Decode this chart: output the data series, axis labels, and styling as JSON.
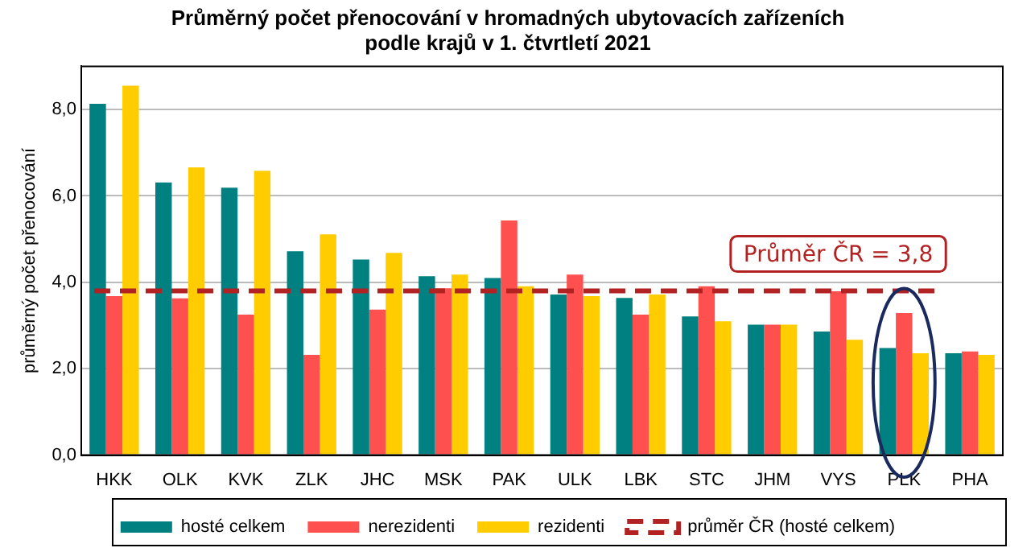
{
  "chart_data": {
    "type": "bar",
    "title": "Průměrný počet přenocování v hromadných ubytovacích zařízeních\npodle krajů v 1. čtvrtletí 2021",
    "ylabel": "průměrný počet přenocování",
    "categories": [
      "HKK",
      "OLK",
      "KVK",
      "ZLK",
      "JHC",
      "MSK",
      "PAK",
      "ULK",
      "LBK",
      "STC",
      "JHM",
      "VYS",
      "PLK",
      "PHA"
    ],
    "series": [
      {
        "name": "hosté celkem",
        "color": "#008080",
        "values": [
          8.13,
          6.31,
          6.19,
          4.72,
          4.53,
          4.14,
          4.1,
          3.72,
          3.64,
          3.21,
          3.02,
          2.86,
          2.48,
          2.36
        ]
      },
      {
        "name": "nerezidenti",
        "color": "#ff5050",
        "values": [
          3.68,
          3.63,
          3.25,
          2.32,
          3.37,
          3.86,
          5.43,
          4.18,
          3.25,
          3.91,
          3.02,
          3.79,
          3.29,
          2.4
        ]
      },
      {
        "name": "rezidenti",
        "color": "#ffcc00",
        "values": [
          8.55,
          6.66,
          6.58,
          5.11,
          4.68,
          4.18,
          3.91,
          3.68,
          3.72,
          3.1,
          3.02,
          2.67,
          2.36,
          2.32
        ]
      }
    ],
    "ref_lines": [
      {
        "axis": "y",
        "value": 3.8,
        "label": "průměr ČR (hosté celkem)",
        "color": "#b22222",
        "line_style": "dashed"
      }
    ],
    "annotations": [
      {
        "text": "Průměr ČR = 3,8",
        "x": "VYS",
        "y": 3.8
      }
    ],
    "ylim": [
      0,
      9
    ],
    "yticks": [
      {
        "value": 0,
        "label": "0,0"
      },
      {
        "value": 2,
        "label": "2,0"
      },
      {
        "value": 4,
        "label": "4,0"
      },
      {
        "value": 6,
        "label": "6,0"
      },
      {
        "value": 8,
        "label": "8,0"
      }
    ],
    "grid": "y",
    "legend": "bottom"
  }
}
